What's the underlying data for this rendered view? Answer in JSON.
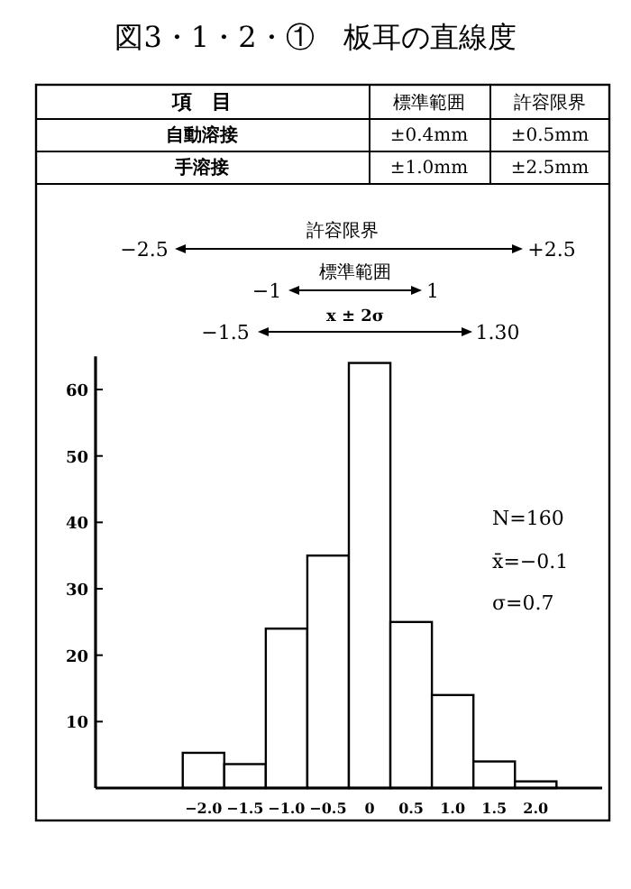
{
  "chart_data": {
    "type": "histogram",
    "title": "図3・1・2・①　板耳の直線度",
    "bins": [
      -2.25,
      -1.75,
      -1.25,
      -0.75,
      -0.25,
      0.25,
      0.75,
      1.25,
      1.75,
      2.25
    ],
    "values": [
      5.3,
      3.6,
      24,
      35,
      64,
      25,
      14,
      4,
      1
    ],
    "xlim": [
      -3.3,
      2.8
    ],
    "ylim": [
      0,
      65
    ],
    "xticks": [
      {
        "value": -2,
        "label": "−2.0"
      },
      {
        "value": -1.5,
        "label": "−1.5"
      },
      {
        "value": -1,
        "label": "−1.0"
      },
      {
        "value": -0.5,
        "label": "−0.5"
      },
      0,
      0.5,
      {
        "value": 1,
        "label": "1.0"
      },
      1.5,
      {
        "value": 2,
        "label": "2.0"
      }
    ],
    "yticks": [
      10,
      20,
      30,
      40,
      50,
      60
    ],
    "grid": false,
    "annotations": [
      "項　目",
      "標準範囲",
      "許容限界",
      "自動溶接",
      "±0.4mm",
      "±0.5mm",
      "手溶接",
      "±1.0mm",
      "±2.5mm",
      "許容限界",
      "−2.5",
      "+2.5",
      "標準範囲",
      "−1",
      "1",
      "x ± 2σ",
      "−1.5",
      "1.30",
      "N=160",
      "x̄=−0.1",
      "σ=0.7"
    ]
  }
}
